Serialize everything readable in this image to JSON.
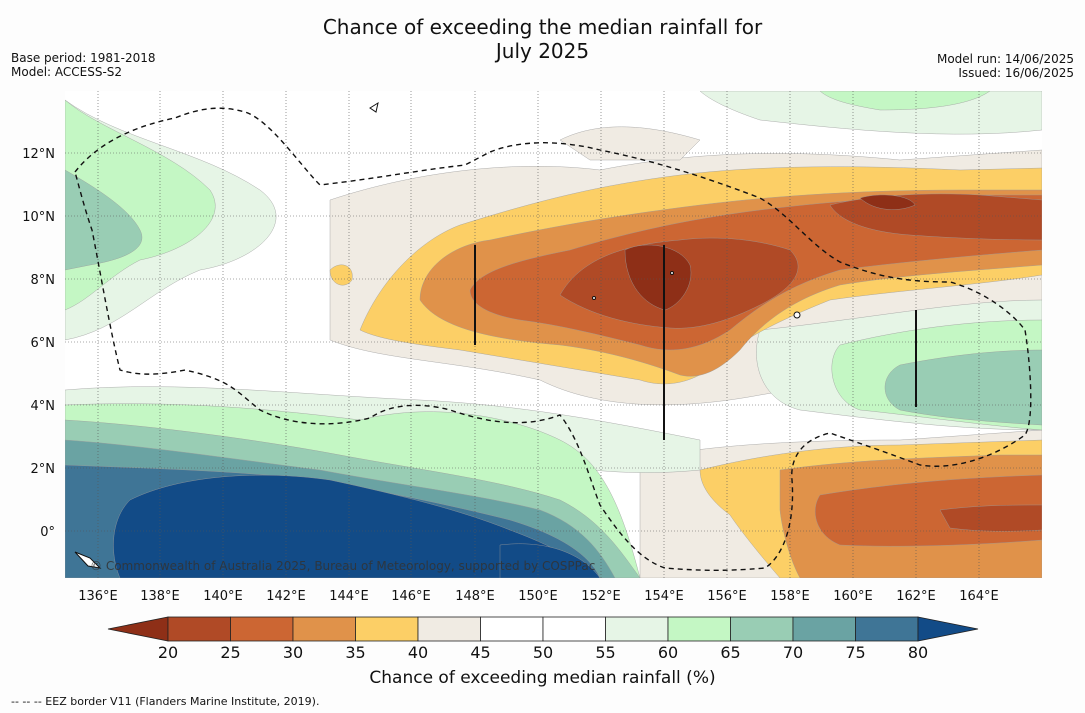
{
  "title_line1": "Chance of exceeding the median rainfall for",
  "title_line2": "July 2025",
  "base_period": "Base period: 1981-2018",
  "model": "Model: ACCESS-S2",
  "model_run": "Model run: 14/06/2025",
  "issued": "Issued: 16/06/2025",
  "copyright": "© Commonwealth of Australia 2025, Bureau of Meteorology, supported by COSPPac",
  "colorbar_title": "Chance of exceeding median rainfall (%)",
  "footnote": "--  --  -- EEZ border V11 (Flanders Marine Institute, 2019).",
  "lon_labels": [
    "136°E",
    "138°E",
    "140°E",
    "142°E",
    "144°E",
    "146°E",
    "148°E",
    "150°E",
    "152°E",
    "154°E",
    "156°E",
    "158°E",
    "160°E",
    "162°E",
    "164°E"
  ],
  "lat_labels": [
    "12°N",
    "10°N",
    "8°N",
    "6°N",
    "4°N",
    "2°N",
    "0°"
  ],
  "colorbar": {
    "ticks": [
      "20",
      "25",
      "30",
      "35",
      "40",
      "45",
      "50",
      "55",
      "60",
      "65",
      "70",
      "75",
      "80"
    ],
    "colors": [
      "#8e2f17",
      "#b04a26",
      "#cc6633",
      "#e0924a",
      "#fccf66",
      "#f0ebe3",
      "#ffffff",
      "#ffffff",
      "#e6f5e6",
      "#c4f7c4",
      "#99cdb4",
      "#6aa3a3",
      "#3f7596",
      "#124b87"
    ],
    "under_color": "#8e2f17",
    "over_color": "#124b87"
  },
  "fill_colors": {
    "p20": "#8e2f17",
    "p25": "#b04a26",
    "p30": "#cc6633",
    "p35": "#e0924a",
    "p40": "#fccf66",
    "p45": "#f0ebe3",
    "p55": "#e6f5e6",
    "p60": "#c4f7c4",
    "p65": "#99cdb4",
    "p70": "#6aa3a3",
    "p75": "#3f7596",
    "p80": "#124b87"
  }
}
